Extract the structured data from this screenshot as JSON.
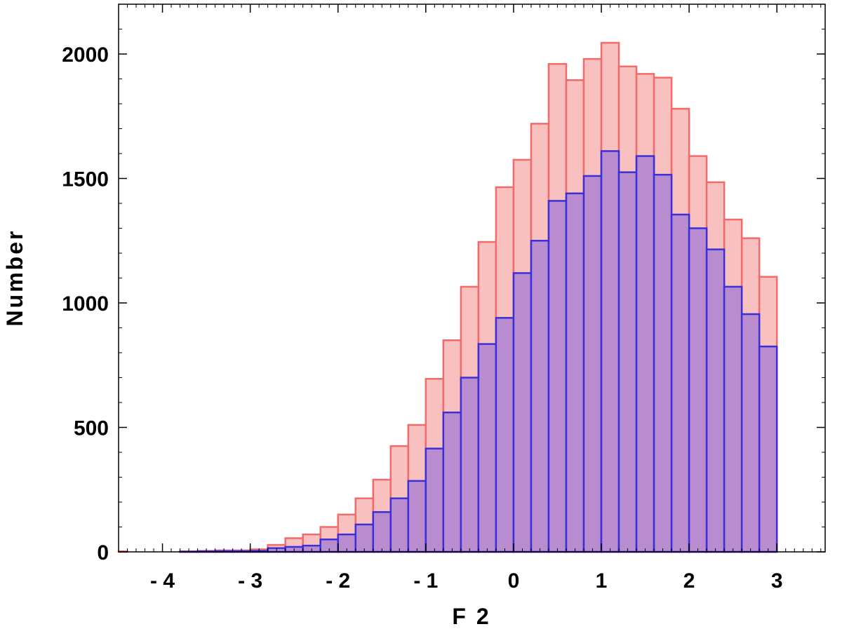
{
  "chart_data": {
    "type": "bar",
    "xlabel": "F 2",
    "ylabel": "Number",
    "xlim": [
      -4.5,
      3.55
    ],
    "ylim": [
      0,
      2200
    ],
    "x_ticks": [
      -4,
      -3,
      -2,
      -1,
      0,
      1,
      2,
      3
    ],
    "x_tick_labels": [
      "- 4",
      "- 3",
      "- 2",
      "- 1",
      "0",
      "1",
      "2",
      "3"
    ],
    "y_ticks": [
      0,
      500,
      1000,
      1500,
      2000
    ],
    "y_tick_labels": [
      "0",
      "500",
      "1000",
      "1500",
      "2000"
    ],
    "bin_width": 0.2,
    "bin_starts": [
      -4.6,
      -3.8,
      -3.6,
      -3.4,
      -3.2,
      -3.0,
      -2.8,
      -2.6,
      -2.4,
      -2.2,
      -2.0,
      -1.8,
      -1.6,
      -1.4,
      -1.2,
      -1.0,
      -0.8,
      -0.6,
      -0.4,
      -0.2,
      0.0,
      0.2,
      0.4,
      0.6,
      0.8,
      1.0,
      1.2,
      1.4,
      1.6,
      1.8,
      2.0,
      2.2,
      2.4,
      2.6,
      2.8
    ],
    "series": [
      {
        "color": "#f26b6b",
        "fill": "#f9c0c0",
        "values": [
          2,
          2,
          4,
          6,
          6,
          10,
          28,
          55,
          70,
          100,
          150,
          215,
          290,
          425,
          510,
          695,
          850,
          1065,
          1245,
          1465,
          1575,
          1720,
          1960,
          1895,
          1980,
          2045,
          1950,
          1920,
          1905,
          1780,
          1590,
          1485,
          1335,
          1260,
          1105
        ]
      },
      {
        "color": "#3a2fd8",
        "fill": "#b98ccf",
        "values": [
          0,
          1,
          2,
          3,
          3,
          4,
          15,
          20,
          25,
          50,
          70,
          110,
          160,
          215,
          285,
          415,
          560,
          700,
          835,
          940,
          1120,
          1250,
          1410,
          1440,
          1510,
          1610,
          1525,
          1590,
          1515,
          1355,
          1300,
          1215,
          1065,
          955,
          825
        ]
      }
    ],
    "grid": false,
    "legend": "none"
  }
}
